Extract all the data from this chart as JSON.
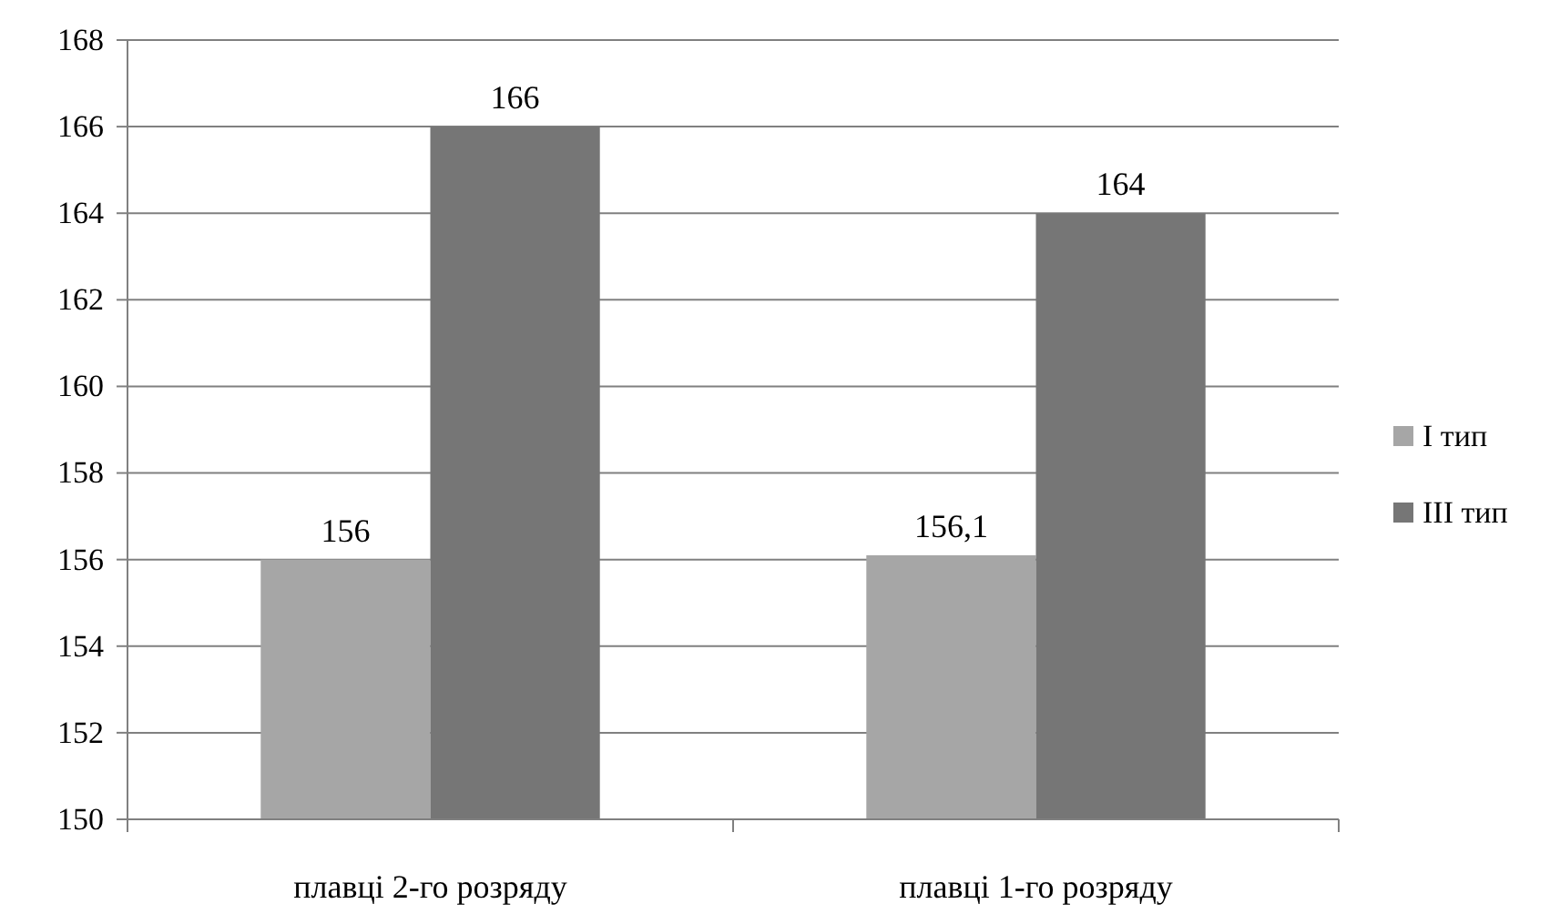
{
  "chart_data": {
    "type": "bar",
    "categories": [
      "плавці 2-го розряду",
      "плавці 1-го розряду"
    ],
    "series": [
      {
        "name": "I тип",
        "color": "#a6a6a6",
        "values": [
          156,
          156.1
        ],
        "value_labels": [
          "156",
          "156,1"
        ]
      },
      {
        "name": "III тип",
        "color": "#767676",
        "values": [
          166,
          164
        ],
        "value_labels": [
          "166",
          "164"
        ]
      }
    ],
    "ylim": [
      150,
      168
    ],
    "yticks": [
      150,
      152,
      154,
      156,
      158,
      160,
      162,
      164,
      166,
      168
    ],
    "grid": "y",
    "legend": "right"
  }
}
